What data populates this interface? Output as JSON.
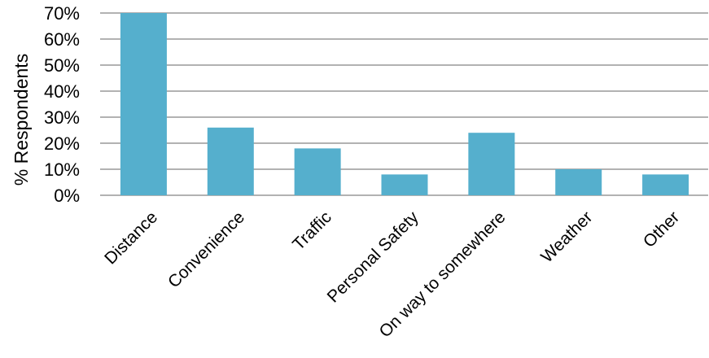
{
  "chart_data": {
    "type": "bar",
    "title": "",
    "xlabel": "",
    "ylabel": "% Respondents",
    "categories": [
      "Distance",
      "Convenience",
      "Traffic",
      "Personal Safety",
      "On way to somewhere",
      "Weather",
      "Other"
    ],
    "values": [
      70,
      26,
      18,
      8,
      24,
      10,
      8
    ],
    "ylim": [
      0,
      70
    ],
    "yticks": [
      0,
      10,
      20,
      30,
      40,
      50,
      60,
      70
    ],
    "ytick_labels": [
      "0%",
      "10%",
      "20%",
      "30%",
      "40%",
      "50%",
      "60%",
      "70%"
    ],
    "grid": true,
    "legend": "none",
    "bar_color": "#55afcd",
    "grid_color": "#999999"
  }
}
